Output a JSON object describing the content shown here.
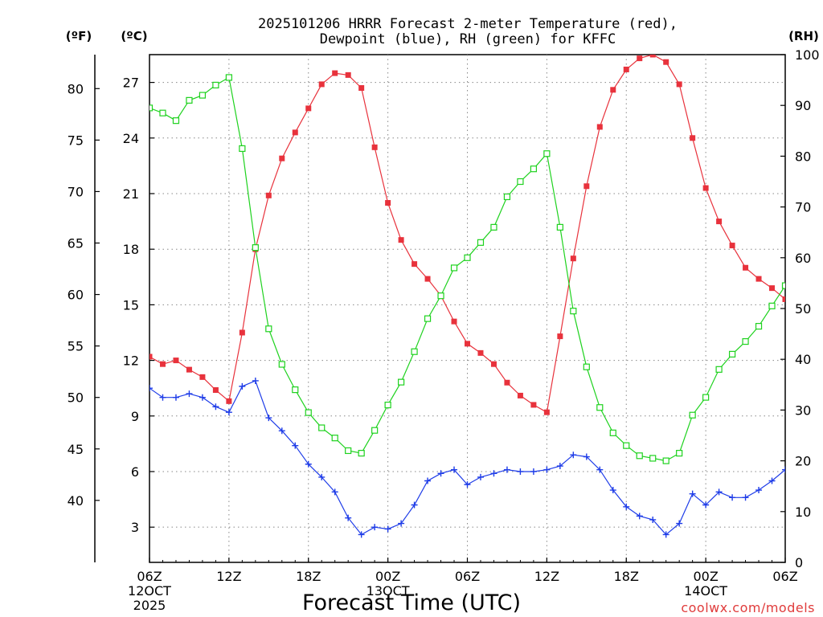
{
  "chart_data": {
    "type": "line",
    "title_line1": "2025101206 HRRR Forecast 2-meter Temperature (red),",
    "title_line2": "Dewpoint (blue), RH (green) for KFFC",
    "xlabel": "Forecast Time (UTC)",
    "credit": "coolwx.com/models",
    "units": {
      "fahrenheit": "(ºF)",
      "celsius": "(ºC)",
      "rh": "(RH)"
    },
    "x_hours": [
      0,
      1,
      2,
      3,
      4,
      5,
      6,
      7,
      8,
      9,
      10,
      11,
      12,
      13,
      14,
      15,
      16,
      17,
      18,
      19,
      20,
      21,
      22,
      23,
      24,
      25,
      26,
      27,
      28,
      29,
      30,
      31,
      32,
      33,
      34,
      35,
      36,
      37,
      38,
      39,
      40,
      41,
      42,
      43,
      44,
      45,
      46,
      47,
      48
    ],
    "xlim": [
      0,
      48
    ],
    "x_ticks": [
      {
        "hour": 0,
        "label": "06Z",
        "date": "12OCT",
        "year": "2025"
      },
      {
        "hour": 6,
        "label": "12Z",
        "date": "",
        "year": ""
      },
      {
        "hour": 12,
        "label": "18Z",
        "date": "",
        "year": ""
      },
      {
        "hour": 18,
        "label": "00Z",
        "date": "13OCT",
        "year": ""
      },
      {
        "hour": 24,
        "label": "06Z",
        "date": "",
        "year": ""
      },
      {
        "hour": 30,
        "label": "12Z",
        "date": "",
        "year": ""
      },
      {
        "hour": 36,
        "label": "18Z",
        "date": "",
        "year": ""
      },
      {
        "hour": 42,
        "label": "00Z",
        "date": "14OCT",
        "year": ""
      },
      {
        "hour": 48,
        "label": "06Z",
        "date": "",
        "year": ""
      }
    ],
    "c_axis": {
      "ylim": [
        1.1,
        28.5
      ],
      "ticks": [
        "3",
        "6",
        "9",
        "12",
        "15",
        "18",
        "21",
        "24",
        "27"
      ]
    },
    "f_axis": {
      "ticks": [
        "40",
        "45",
        "50",
        "55",
        "60",
        "65",
        "70",
        "75",
        "80"
      ]
    },
    "rh_axis": {
      "ylim": [
        0,
        100
      ],
      "ticks": [
        "0",
        "10",
        "20",
        "30",
        "40",
        "50",
        "60",
        "70",
        "80",
        "90",
        "100"
      ]
    },
    "series": [
      {
        "name": "Temperature (°C)",
        "color": "#e8323c",
        "marker": "filled-square",
        "values": [
          12.2,
          11.8,
          12.0,
          11.5,
          11.1,
          10.4,
          9.8,
          13.5,
          18.0,
          20.9,
          22.9,
          24.3,
          25.6,
          26.9,
          27.5,
          27.4,
          26.7,
          23.5,
          20.5,
          18.5,
          17.2,
          16.4,
          15.5,
          14.1,
          12.9,
          12.4,
          11.8,
          10.8,
          10.1,
          9.6,
          9.2,
          13.3,
          17.5,
          21.4,
          24.6,
          26.6,
          27.7,
          28.3,
          28.5,
          28.1,
          26.9,
          24.0,
          21.3,
          19.5,
          18.2,
          17.0,
          16.4,
          15.9,
          15.3
        ]
      },
      {
        "name": "Dewpoint (°C)",
        "color": "#1e3ce8",
        "marker": "plus",
        "values": [
          10.5,
          10.0,
          10.0,
          10.2,
          10.0,
          9.5,
          9.2,
          10.6,
          10.9,
          8.9,
          8.2,
          7.4,
          6.4,
          5.7,
          4.9,
          3.5,
          2.6,
          3.0,
          2.9,
          3.2,
          4.2,
          5.5,
          5.9,
          6.1,
          5.3,
          5.7,
          5.9,
          6.1,
          6.0,
          6.0,
          6.1,
          6.3,
          6.9,
          6.8,
          6.1,
          5.0,
          4.1,
          3.6,
          3.4,
          2.6,
          3.2,
          4.8,
          4.2,
          4.9,
          4.6,
          4.6,
          5.0,
          5.5,
          6.1
        ]
      },
      {
        "name": "RH (%)",
        "color": "#1ed21e",
        "marker": "open-square",
        "values": [
          89.5,
          88.5,
          87,
          91,
          92,
          94,
          95.5,
          81.5,
          62,
          46,
          39,
          34,
          29.5,
          26.5,
          24.5,
          22,
          21.5,
          26,
          31,
          35.5,
          41.5,
          48,
          52.5,
          58,
          60,
          63,
          66,
          72,
          75,
          77.5,
          80.5,
          66,
          49.5,
          38.5,
          30.5,
          25.5,
          23,
          21,
          20.5,
          20,
          21.5,
          29,
          32.5,
          38,
          41,
          43.5,
          46.5,
          50.5,
          54.5
        ]
      }
    ]
  }
}
